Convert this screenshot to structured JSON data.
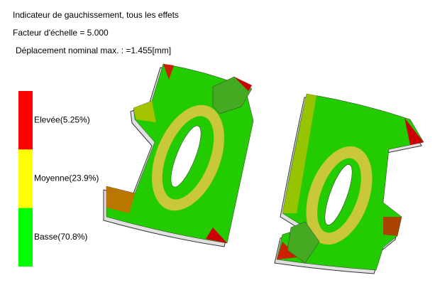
{
  "header": {
    "title": "Indicateur de gauchissement, tous les effets",
    "scale": "Facteur d'échelle = 5.000",
    "displacement": "Déplacement nominal max. : =1.455[mm]"
  },
  "legend": {
    "items": [
      {
        "label": "Elevée(5.25%)",
        "color": "#ff0000"
      },
      {
        "label": "Moyenne(23.9%)",
        "color": "#ffff00"
      },
      {
        "label": "Basse(70.8%)",
        "color": "#00ff00"
      }
    ]
  }
}
